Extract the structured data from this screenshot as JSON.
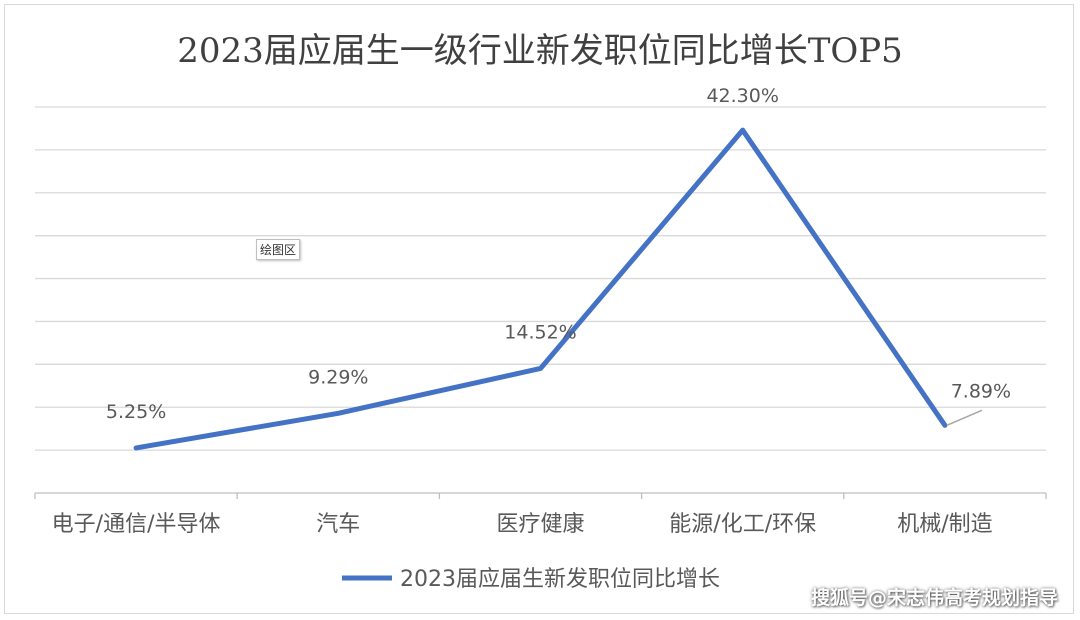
{
  "chart_data": {
    "type": "line",
    "title": "2023届应届生一级行业新发职位同比增长TOP5",
    "categories": [
      "电子/通信/半导体",
      "汽车",
      "医疗健康",
      "能源/化工/环保",
      "机械/制造"
    ],
    "series": [
      {
        "name": "2023届应届生新发职位同比增长",
        "values": [
          5.25,
          9.29,
          14.52,
          42.3,
          7.89
        ],
        "labels": [
          "5.25%",
          "9.29%",
          "14.52%",
          "42.30%",
          "7.89%"
        ],
        "color": "#4472C4"
      }
    ],
    "ylim": [
      0,
      45
    ],
    "grid": true,
    "legend": "bottom"
  },
  "plot_area_tag": "绘图区",
  "watermark": "搜狐号@宋志伟高考规划指导",
  "colors": {
    "line": "#4472C4",
    "grid": "#d9d9d9",
    "text": "#595959",
    "title": "#404040"
  }
}
